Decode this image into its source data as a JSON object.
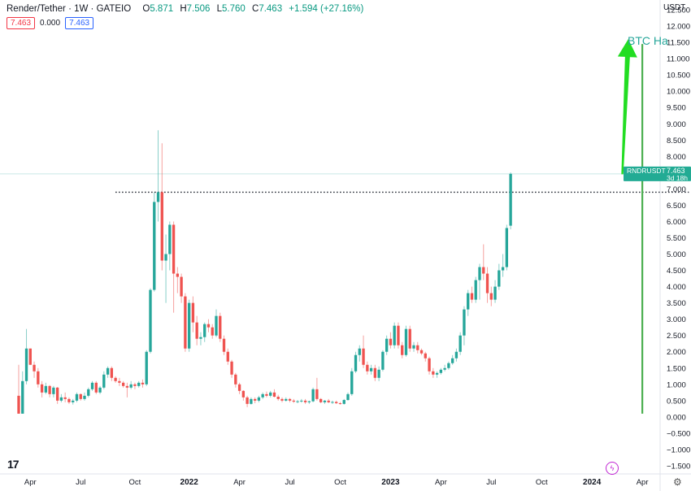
{
  "header": {
    "symbol": "Render/Tether · 1W · GATEIO",
    "open_label": "O",
    "open": "5.871",
    "high_label": "H",
    "high": "7.506",
    "low_label": "L",
    "low": "5.760",
    "close_label": "C",
    "close": "7.463",
    "change": "+1.594 (+27.16%)"
  },
  "indicators": {
    "price_box": "7.463",
    "spread": "0.000",
    "price_box2": "7.463"
  },
  "axis_unit": "USDT",
  "price_label": {
    "name": "RNDRUSDT",
    "value": "7.463",
    "countdown": "3d 18h"
  },
  "annotation": "BTC Ha",
  "colors": {
    "up": "#26a69a",
    "down": "#ef5350",
    "arrow": "#22dd22",
    "vline": "#4caf50",
    "label_bg": "#22ab94"
  },
  "icons": [
    "tradingview-logo-icon",
    "flash-icon",
    "settings-gear-icon"
  ],
  "chart_data": {
    "type": "candlestick",
    "y_ticks": [
      "12.500",
      "12.000",
      "11.500",
      "11.000",
      "10.500",
      "10.000",
      "9.500",
      "9.000",
      "8.500",
      "8.000",
      "7.500",
      "7.000",
      "6.500",
      "6.000",
      "5.500",
      "5.000",
      "4.500",
      "4.000",
      "3.500",
      "3.000",
      "2.500",
      "2.000",
      "1.500",
      "1.000",
      "0.500",
      "0.000",
      "−0.500",
      "−1.000",
      "−1.500"
    ],
    "ylim": [
      -1.75,
      12.8
    ],
    "x_ticks": [
      {
        "label": "Apr",
        "i": 3
      },
      {
        "label": "Jul",
        "i": 16
      },
      {
        "label": "Oct",
        "i": 30
      },
      {
        "label": "2022",
        "i": 44
      },
      {
        "label": "Apr",
        "i": 57
      },
      {
        "label": "Jul",
        "i": 70
      },
      {
        "label": "Oct",
        "i": 83
      },
      {
        "label": "2023",
        "i": 96
      },
      {
        "label": "Apr",
        "i": 109
      },
      {
        "label": "Jul",
        "i": 122
      },
      {
        "label": "Oct",
        "i": 135
      },
      {
        "label": "2024",
        "i": 148
      },
      {
        "label": "Apr",
        "i": 161
      }
    ],
    "x_range": [
      -1,
      173
    ],
    "horizontal_level": 6.9,
    "horizontal_level_range": [
      25,
      173
    ],
    "vertical_line_index": 161,
    "target_arrow": {
      "from_index": 155,
      "from_price": 7.45,
      "to_index": 158,
      "to_price": 11.6
    },
    "candles": [
      [
        0.65,
        1.6,
        0.1,
        0.1
      ],
      [
        0.1,
        1.4,
        0.1,
        1.1
      ],
      [
        1.1,
        2.7,
        1.0,
        2.1
      ],
      [
        2.1,
        2.1,
        1.6,
        1.6
      ],
      [
        1.6,
        1.7,
        1.2,
        1.4
      ],
      [
        1.4,
        1.5,
        0.9,
        1.0
      ],
      [
        1.0,
        1.1,
        0.6,
        0.75
      ],
      [
        0.75,
        1.05,
        0.7,
        0.95
      ],
      [
        0.95,
        0.98,
        0.6,
        0.7
      ],
      [
        0.7,
        0.95,
        0.6,
        0.9
      ],
      [
        0.9,
        0.92,
        0.4,
        0.5
      ],
      [
        0.5,
        0.7,
        0.45,
        0.6
      ],
      [
        0.6,
        0.75,
        0.45,
        0.55
      ],
      [
        0.55,
        0.6,
        0.4,
        0.45
      ],
      [
        0.45,
        0.55,
        0.38,
        0.5
      ],
      [
        0.5,
        0.75,
        0.45,
        0.7
      ],
      [
        0.7,
        0.72,
        0.5,
        0.55
      ],
      [
        0.55,
        0.75,
        0.5,
        0.65
      ],
      [
        0.65,
        0.9,
        0.6,
        0.85
      ],
      [
        0.85,
        1.1,
        0.8,
        1.05
      ],
      [
        1.05,
        1.1,
        0.7,
        0.75
      ],
      [
        0.75,
        0.95,
        0.7,
        0.9
      ],
      [
        0.9,
        1.4,
        0.85,
        1.3
      ],
      [
        1.3,
        1.55,
        1.2,
        1.5
      ],
      [
        1.5,
        1.55,
        1.1,
        1.2
      ],
      [
        1.2,
        1.25,
        1.05,
        1.1
      ],
      [
        1.1,
        1.2,
        0.95,
        1.05
      ],
      [
        1.05,
        1.1,
        0.9,
        0.95
      ],
      [
        0.95,
        1.05,
        0.6,
        0.9
      ],
      [
        0.9,
        1.1,
        0.85,
        1.0
      ],
      [
        1.0,
        1.05,
        0.85,
        0.95
      ],
      [
        0.95,
        1.1,
        0.9,
        1.05
      ],
      [
        1.05,
        1.15,
        0.9,
        1.0
      ],
      [
        1.0,
        2.05,
        0.95,
        2.0
      ],
      [
        2.0,
        3.95,
        1.95,
        3.9
      ],
      [
        3.9,
        6.9,
        3.85,
        6.6
      ],
      [
        6.6,
        8.8,
        6.0,
        6.9
      ],
      [
        6.9,
        8.4,
        4.5,
        4.8
      ],
      [
        4.8,
        5.6,
        3.5,
        5.0
      ],
      [
        5.0,
        6.0,
        4.5,
        5.9
      ],
      [
        5.9,
        6.0,
        3.2,
        4.4
      ],
      [
        4.4,
        4.6,
        3.8,
        4.3
      ],
      [
        4.3,
        4.4,
        3.5,
        3.7
      ],
      [
        3.7,
        3.8,
        2.0,
        2.1
      ],
      [
        2.1,
        3.6,
        2.0,
        3.5
      ],
      [
        3.5,
        3.7,
        2.6,
        2.9
      ],
      [
        2.9,
        3.1,
        2.2,
        2.4
      ],
      [
        2.4,
        2.6,
        2.2,
        2.45
      ],
      [
        2.45,
        2.9,
        2.3,
        2.85
      ],
      [
        2.85,
        3.0,
        2.6,
        2.75
      ],
      [
        2.75,
        2.85,
        2.4,
        2.5
      ],
      [
        2.5,
        3.3,
        2.45,
        3.1
      ],
      [
        3.1,
        3.2,
        2.3,
        2.4
      ],
      [
        2.4,
        2.5,
        1.9,
        2.0
      ],
      [
        2.0,
        2.1,
        1.6,
        1.7
      ],
      [
        1.7,
        1.75,
        1.2,
        1.3
      ],
      [
        1.3,
        1.35,
        0.9,
        1.0
      ],
      [
        1.0,
        1.05,
        0.7,
        0.8
      ],
      [
        0.8,
        0.82,
        0.5,
        0.6
      ],
      [
        0.6,
        0.65,
        0.3,
        0.4
      ],
      [
        0.4,
        0.6,
        0.38,
        0.55
      ],
      [
        0.55,
        0.6,
        0.42,
        0.5
      ],
      [
        0.5,
        0.65,
        0.45,
        0.6
      ],
      [
        0.6,
        0.75,
        0.55,
        0.7
      ],
      [
        0.7,
        0.78,
        0.6,
        0.65
      ],
      [
        0.65,
        0.8,
        0.6,
        0.75
      ],
      [
        0.75,
        0.85,
        0.6,
        0.62
      ],
      [
        0.62,
        0.68,
        0.5,
        0.55
      ],
      [
        0.55,
        0.6,
        0.45,
        0.5
      ],
      [
        0.5,
        0.6,
        0.47,
        0.55
      ],
      [
        0.55,
        0.58,
        0.45,
        0.5
      ],
      [
        0.5,
        0.55,
        0.43,
        0.47
      ],
      [
        0.47,
        0.52,
        0.42,
        0.48
      ],
      [
        0.48,
        0.55,
        0.44,
        0.5
      ],
      [
        0.5,
        0.55,
        0.4,
        0.45
      ],
      [
        0.45,
        0.5,
        0.4,
        0.48
      ],
      [
        0.48,
        0.9,
        0.45,
        0.85
      ],
      [
        0.85,
        1.2,
        0.5,
        0.55
      ],
      [
        0.55,
        0.58,
        0.42,
        0.45
      ],
      [
        0.45,
        0.52,
        0.4,
        0.5
      ],
      [
        0.5,
        0.55,
        0.42,
        0.45
      ],
      [
        0.45,
        0.5,
        0.4,
        0.46
      ],
      [
        0.46,
        0.5,
        0.4,
        0.42
      ],
      [
        0.42,
        0.46,
        0.38,
        0.4
      ],
      [
        0.4,
        0.55,
        0.38,
        0.52
      ],
      [
        0.52,
        0.75,
        0.5,
        0.7
      ],
      [
        0.7,
        1.5,
        0.65,
        1.4
      ],
      [
        1.4,
        2.0,
        1.35,
        1.9
      ],
      [
        1.9,
        2.2,
        1.7,
        2.1
      ],
      [
        2.1,
        2.5,
        1.5,
        1.6
      ],
      [
        1.6,
        1.7,
        1.3,
        1.4
      ],
      [
        1.4,
        1.6,
        1.3,
        1.5
      ],
      [
        1.5,
        1.6,
        1.1,
        1.2
      ],
      [
        1.2,
        1.55,
        1.1,
        1.45
      ],
      [
        1.45,
        2.05,
        1.4,
        2.0
      ],
      [
        2.0,
        2.5,
        1.9,
        2.4
      ],
      [
        2.4,
        2.6,
        2.1,
        2.2
      ],
      [
        2.2,
        2.9,
        2.1,
        2.8
      ],
      [
        2.8,
        2.9,
        2.1,
        2.2
      ],
      [
        2.2,
        2.3,
        1.8,
        1.9
      ],
      [
        1.9,
        2.8,
        1.85,
        2.7
      ],
      [
        2.7,
        2.8,
        2.0,
        2.1
      ],
      [
        2.1,
        2.3,
        2.0,
        2.2
      ],
      [
        2.2,
        2.3,
        1.95,
        2.05
      ],
      [
        2.05,
        2.1,
        1.9,
        1.95
      ],
      [
        1.95,
        2.0,
        1.7,
        1.8
      ],
      [
        1.8,
        1.85,
        1.3,
        1.4
      ],
      [
        1.4,
        1.5,
        1.2,
        1.3
      ],
      [
        1.3,
        1.4,
        1.2,
        1.35
      ],
      [
        1.35,
        1.5,
        1.3,
        1.45
      ],
      [
        1.45,
        1.6,
        1.4,
        1.5
      ],
      [
        1.5,
        1.7,
        1.45,
        1.65
      ],
      [
        1.65,
        1.9,
        1.6,
        1.8
      ],
      [
        1.8,
        2.1,
        1.7,
        2.0
      ],
      [
        2.0,
        2.6,
        1.9,
        2.5
      ],
      [
        2.5,
        3.4,
        2.2,
        3.3
      ],
      [
        3.3,
        3.9,
        3.1,
        3.8
      ],
      [
        3.8,
        4.0,
        3.5,
        3.6
      ],
      [
        3.6,
        4.3,
        3.5,
        4.2
      ],
      [
        4.2,
        4.7,
        3.6,
        4.6
      ],
      [
        4.6,
        5.3,
        4.2,
        4.4
      ],
      [
        4.4,
        4.6,
        3.5,
        3.8
      ],
      [
        3.8,
        4.0,
        3.4,
        3.6
      ],
      [
        3.6,
        4.2,
        3.5,
        4.0
      ],
      [
        4.0,
        4.7,
        3.9,
        4.5
      ],
      [
        4.5,
        5.0,
        4.3,
        4.6
      ],
      [
        4.6,
        5.9,
        4.5,
        5.8
      ],
      [
        5.871,
        7.506,
        5.76,
        7.463
      ]
    ]
  }
}
